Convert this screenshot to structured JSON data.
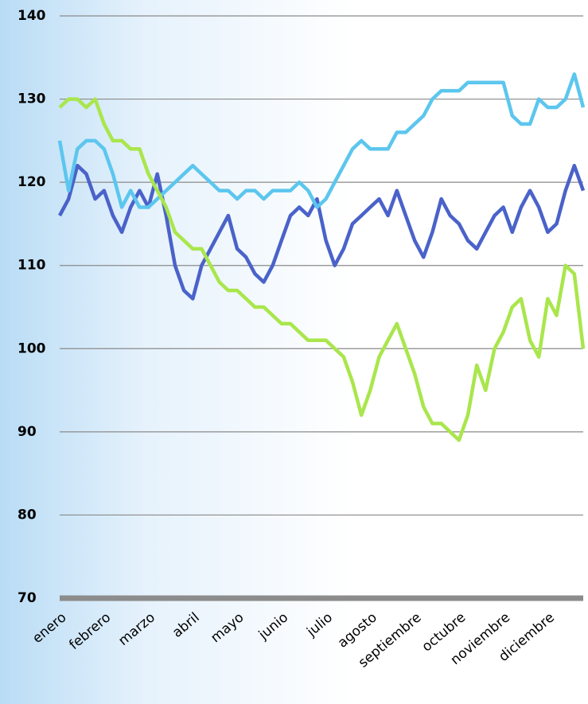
{
  "chart_data": {
    "type": "line",
    "categories": [
      "enero",
      null,
      null,
      null,
      null,
      "febrero",
      null,
      null,
      null,
      null,
      "marzo",
      null,
      null,
      null,
      null,
      "abril",
      null,
      null,
      null,
      null,
      "mayo",
      null,
      null,
      null,
      null,
      "junio",
      null,
      null,
      null,
      null,
      "julio",
      null,
      null,
      null,
      null,
      "agosto",
      null,
      null,
      null,
      null,
      "septiembre",
      null,
      null,
      null,
      null,
      "octubre",
      null,
      null,
      null,
      null,
      "noviembre",
      null,
      null,
      null,
      null,
      "diciembre",
      null,
      null,
      null,
      null
    ],
    "series": [
      {
        "color": "#4a62c9",
        "values": [
          116,
          118,
          122,
          121,
          118,
          119,
          116,
          114,
          117,
          119,
          117,
          121,
          116,
          110,
          107,
          106,
          110,
          112,
          114,
          116,
          112,
          111,
          109,
          108,
          110,
          113,
          116,
          117,
          116,
          118,
          113,
          110,
          112,
          115,
          116,
          117,
          118,
          116,
          119,
          116,
          113,
          111,
          114,
          118,
          116,
          115,
          113,
          112,
          114,
          116,
          117,
          114,
          117,
          119,
          117,
          114,
          115,
          119,
          122,
          119
        ]
      },
      {
        "color": "#5cc6ee",
        "values": [
          125,
          119,
          124,
          125,
          125,
          124,
          121,
          117,
          119,
          117,
          117,
          118,
          119,
          120,
          121,
          122,
          121,
          120,
          119,
          119,
          118,
          119,
          119,
          118,
          119,
          119,
          119,
          120,
          119,
          117,
          118,
          120,
          122,
          124,
          125,
          124,
          124,
          124,
          126,
          126,
          127,
          128,
          130,
          131,
          131,
          131,
          132,
          132,
          132,
          132,
          132,
          128,
          127,
          127,
          130,
          129,
          129,
          130,
          133,
          129
        ]
      },
      {
        "color": "#a9e64c",
        "values": [
          129,
          130,
          130,
          129,
          130,
          127,
          125,
          125,
          124,
          124,
          121,
          119,
          117,
          114,
          113,
          112,
          112,
          110,
          108,
          107,
          107,
          106,
          105,
          105,
          104,
          103,
          103,
          102,
          101,
          101,
          101,
          100,
          99,
          96,
          92,
          95,
          99,
          101,
          103,
          100,
          97,
          93,
          91,
          91,
          90,
          89,
          92,
          98,
          95,
          100,
          102,
          105,
          106,
          101,
          99,
          106,
          104,
          110,
          109,
          100
        ]
      }
    ],
    "ylim": [
      70,
      140
    ],
    "yticks": [
      70,
      80,
      90,
      100,
      110,
      120,
      130,
      140
    ],
    "grid": true
  }
}
